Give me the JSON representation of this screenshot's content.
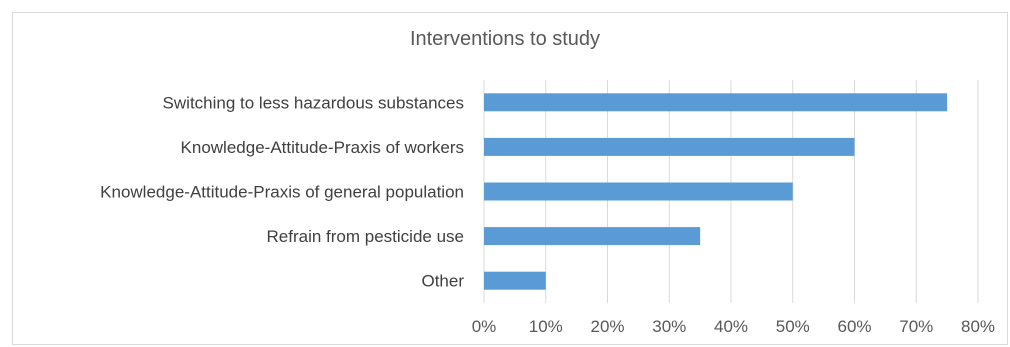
{
  "chart_data": {
    "type": "bar",
    "orientation": "horizontal",
    "title": "Interventions to study",
    "categories": [
      "Switching to less hazardous substances",
      "Knowledge-Attitude-Praxis of workers",
      "Knowledge-Attitude-Praxis of general population",
      "Refrain from pesticide use",
      "Other"
    ],
    "values": [
      0.75,
      0.6,
      0.5,
      0.35,
      0.1
    ],
    "xlim": [
      0,
      0.8
    ],
    "xticks": [
      "0%",
      "10%",
      "20%",
      "30%",
      "40%",
      "50%",
      "60%",
      "70%",
      "80%"
    ],
    "grid": true,
    "legend": "none",
    "bar_color": "#5b9bd5",
    "grid_color": "#d9d9d9",
    "xlabel": "",
    "ylabel": ""
  }
}
